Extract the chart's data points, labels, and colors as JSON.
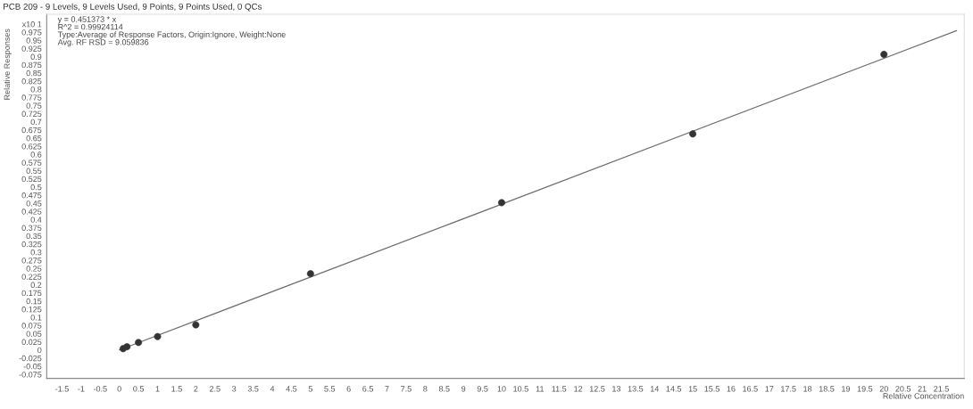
{
  "chart_data": {
    "type": "scatter",
    "title": "PCB 209 - 9 Levels, 9 Levels Used, 9 Points, 9 Points Used, 0 QCs",
    "xlabel": "Relative Concentration",
    "ylabel": "Relative Responses",
    "annotations": [
      "y = 0.451373 * x",
      "R^2 = 0.99924114",
      "Type:Average of Response Factors, Origin:Ignore, Weight:None",
      "Avg. RF RSD = 9.059836"
    ],
    "series": [
      {
        "color": "#333333",
        "marker": "circle",
        "x": [
          0.1,
          0.2,
          0.5,
          1,
          2,
          5,
          10,
          15,
          20
        ],
        "values": [
          0.004,
          0.01,
          0.023,
          0.041,
          0.077,
          0.234,
          0.452,
          0.663,
          0.907
        ]
      },
      {
        "type": "line",
        "color": "#707070",
        "line_style": "solid",
        "x": [
          0,
          21.9
        ],
        "values": [
          0,
          0.98
        ]
      }
    ],
    "xlim": [
      -1.9,
      22.1
    ],
    "xticks": [
      -1.5,
      -1,
      -0.5,
      0,
      0.5,
      1,
      1.5,
      2,
      2.5,
      3,
      3.5,
      4,
      4.5,
      5,
      5.5,
      6,
      6.5,
      7,
      7.5,
      8,
      8.5,
      9,
      9.5,
      10,
      10.5,
      11,
      11.5,
      12,
      12.5,
      13,
      13.5,
      14,
      14.5,
      15,
      15.5,
      16,
      16.5,
      17,
      17.5,
      18,
      18.5,
      19,
      19.5,
      20,
      20.5,
      21,
      21.5
    ],
    "ylim": [
      -0.087,
      1.03
    ],
    "yticks": [
      -0.075,
      -0.05,
      -0.025,
      0,
      0.025,
      0.05,
      0.075,
      0.1,
      0.125,
      0.15,
      0.175,
      0.2,
      0.225,
      0.25,
      0.275,
      0.3,
      0.325,
      0.35,
      0.375,
      0.4,
      0.425,
      0.45,
      0.475,
      0.5,
      0.525,
      0.55,
      0.575,
      0.6,
      0.625,
      0.65,
      0.675,
      0.7,
      0.725,
      0.75,
      0.775,
      0.8,
      0.825,
      0.85,
      0.875,
      0.9,
      0.925,
      0.95,
      0.975,
      {
        "value": 1,
        "label": "x10 1"
      }
    ],
    "grid": false,
    "legend": false
  }
}
